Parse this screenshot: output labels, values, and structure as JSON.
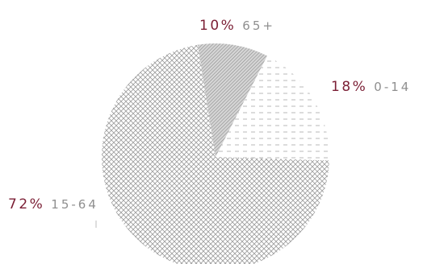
{
  "chart_data": {
    "type": "pie",
    "title": "",
    "unit": "%",
    "slices": [
      {
        "label": "0-14",
        "value": 18,
        "display": "18%",
        "pattern": "dashes"
      },
      {
        "label": "15-64",
        "value": 72,
        "display": "72%",
        "pattern": "crosshatch"
      },
      {
        "label": "65+",
        "value": 10,
        "display": "10%",
        "pattern": "diagonal"
      }
    ],
    "colors": {
      "percent_text": "#7b1f35",
      "label_text": "#8f8f8f",
      "hatch": "#a9a9a9"
    },
    "legend": "none"
  }
}
